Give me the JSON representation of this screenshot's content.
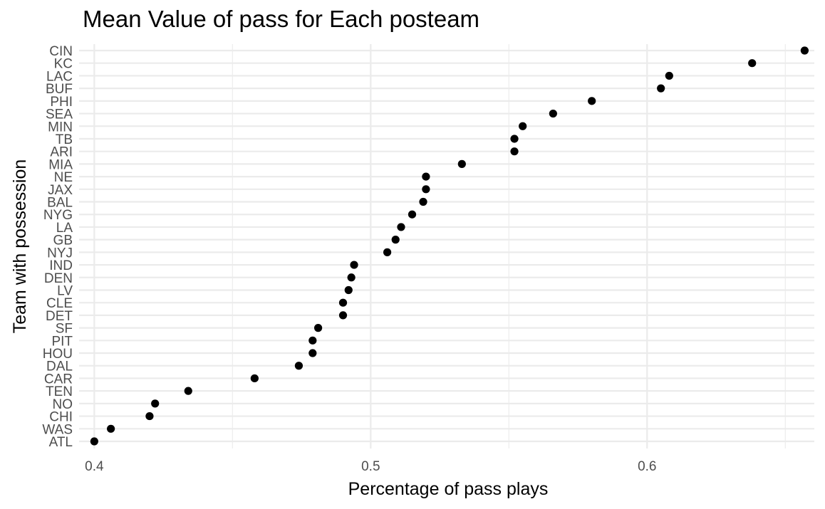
{
  "chart_data": {
    "type": "scatter",
    "title": "Mean Value of pass for Each posteam",
    "xlabel": "Percentage of pass plays",
    "ylabel": "Team with possession",
    "xlim": [
      0.3945,
      0.6605
    ],
    "x_ticks": [
      0.4,
      0.5,
      0.6
    ],
    "x_tick_labels": [
      "0.4",
      "0.5",
      "0.6"
    ],
    "grid": true,
    "legend": "none",
    "categories": [
      "ATL",
      "WAS",
      "CHI",
      "NO",
      "TEN",
      "CAR",
      "DAL",
      "HOU",
      "PIT",
      "SF",
      "DET",
      "CLE",
      "LV",
      "DEN",
      "IND",
      "NYJ",
      "GB",
      "LA",
      "NYG",
      "BAL",
      "JAX",
      "NE",
      "MIA",
      "ARI",
      "TB",
      "MIN",
      "SEA",
      "PHI",
      "BUF",
      "LAC",
      "KC",
      "CIN"
    ],
    "values": [
      0.4,
      0.406,
      0.42,
      0.422,
      0.434,
      0.458,
      0.474,
      0.479,
      0.479,
      0.481,
      0.49,
      0.49,
      0.492,
      0.493,
      0.494,
      0.506,
      0.509,
      0.511,
      0.515,
      0.519,
      0.52,
      0.52,
      0.533,
      0.552,
      0.552,
      0.555,
      0.566,
      0.58,
      0.605,
      0.608,
      0.638,
      0.657
    ]
  }
}
